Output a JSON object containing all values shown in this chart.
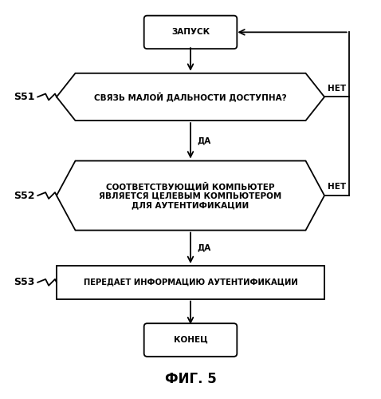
{
  "title": "ФИГ. 5",
  "bg_color": "#ffffff",
  "line_color": "#000000",
  "fill_color": "#ffffff",
  "text_color": "#000000",
  "start_label": "ЗАПУСК",
  "end_label": "КОНЕЦ",
  "s51_label": "СВЯЗЬ МАЛОЙ ДАЛЬНОСТИ ДОСТУПНА?",
  "s52_label": "СООТВЕТСТВУЮЩИЙ КОМПЬЮТЕР\nЯВЛЯЕТСЯ ЦЕЛЕВЫМ КОМПЬЮТЕРОМ\nДЛЯ АУТЕНТИФИКАЦИИ",
  "s53_label": "ПЕРЕДАЕТ ИНФОРМАЦИЮ АУТЕНТИФИКАЦИИ",
  "yes_label": "ДА",
  "no_label": "НЕТ",
  "step51": "S51",
  "step52": "S52",
  "step53": "S53",
  "font_size_node": 7.5,
  "font_size_step": 9,
  "font_size_title": 12,
  "font_size_yn": 7.5,
  "lw": 1.3
}
